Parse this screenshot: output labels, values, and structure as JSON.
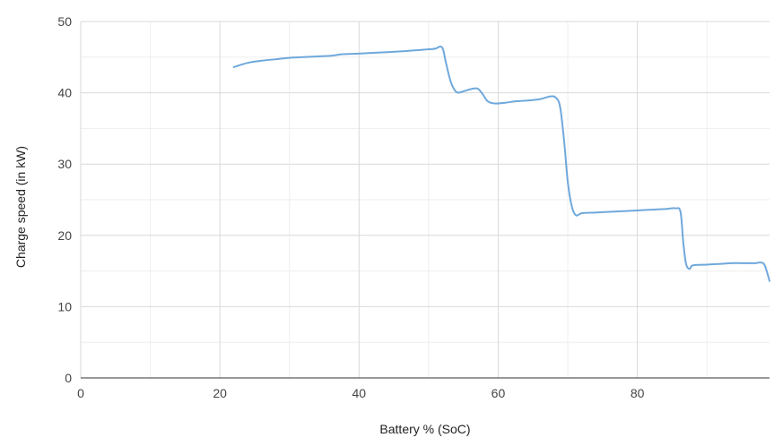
{
  "chart_data": {
    "type": "line",
    "title": "",
    "xlabel": "Battery % (SoC)",
    "ylabel": "Charge speed (in kW)",
    "xlim": [
      0,
      99
    ],
    "ylim": [
      0,
      50
    ],
    "x_ticks": [
      0,
      20,
      40,
      60,
      80
    ],
    "y_ticks": [
      0,
      10,
      20,
      30,
      40,
      50
    ],
    "grid": true,
    "legend": "none",
    "series": [
      {
        "color": "#6fa8dc",
        "points": [
          [
            22,
            43.6
          ],
          [
            24,
            44.2
          ],
          [
            26,
            44.5
          ],
          [
            28,
            44.7
          ],
          [
            30,
            44.9
          ],
          [
            32,
            45.0
          ],
          [
            34,
            45.1
          ],
          [
            36,
            45.2
          ],
          [
            37.5,
            45.4
          ],
          [
            40,
            45.5
          ],
          [
            42,
            45.6
          ],
          [
            44,
            45.7
          ],
          [
            46,
            45.8
          ],
          [
            48,
            45.95
          ],
          [
            50,
            46.1
          ],
          [
            51,
            46.2
          ],
          [
            51.7,
            46.5
          ],
          [
            52.1,
            46.0
          ],
          [
            52.5,
            44.2
          ],
          [
            53.2,
            41.5
          ],
          [
            54,
            40.1
          ],
          [
            55,
            40.2
          ],
          [
            56,
            40.5
          ],
          [
            57,
            40.6
          ],
          [
            57.7,
            39.9
          ],
          [
            58.5,
            38.8
          ],
          [
            59.5,
            38.5
          ],
          [
            61,
            38.6
          ],
          [
            62.5,
            38.8
          ],
          [
            64,
            38.9
          ],
          [
            66,
            39.1
          ],
          [
            67.5,
            39.5
          ],
          [
            68.3,
            39.3
          ],
          [
            68.9,
            38.0
          ],
          [
            69.5,
            33.0
          ],
          [
            70,
            27.5
          ],
          [
            70.6,
            24.0
          ],
          [
            71.2,
            22.8
          ],
          [
            72,
            23.1
          ],
          [
            74,
            23.2
          ],
          [
            76,
            23.3
          ],
          [
            78,
            23.4
          ],
          [
            80,
            23.5
          ],
          [
            82,
            23.6
          ],
          [
            84,
            23.7
          ],
          [
            85.5,
            23.8
          ],
          [
            86.2,
            23.3
          ],
          [
            86.6,
            19.0
          ],
          [
            87,
            16.0
          ],
          [
            87.5,
            15.3
          ],
          [
            88,
            15.8
          ],
          [
            90,
            15.9
          ],
          [
            92,
            16.0
          ],
          [
            93.5,
            16.1
          ],
          [
            95,
            16.1
          ],
          [
            97,
            16.1
          ],
          [
            97.7,
            16.2
          ],
          [
            98.3,
            15.8
          ],
          [
            99,
            13.6
          ]
        ]
      }
    ]
  }
}
